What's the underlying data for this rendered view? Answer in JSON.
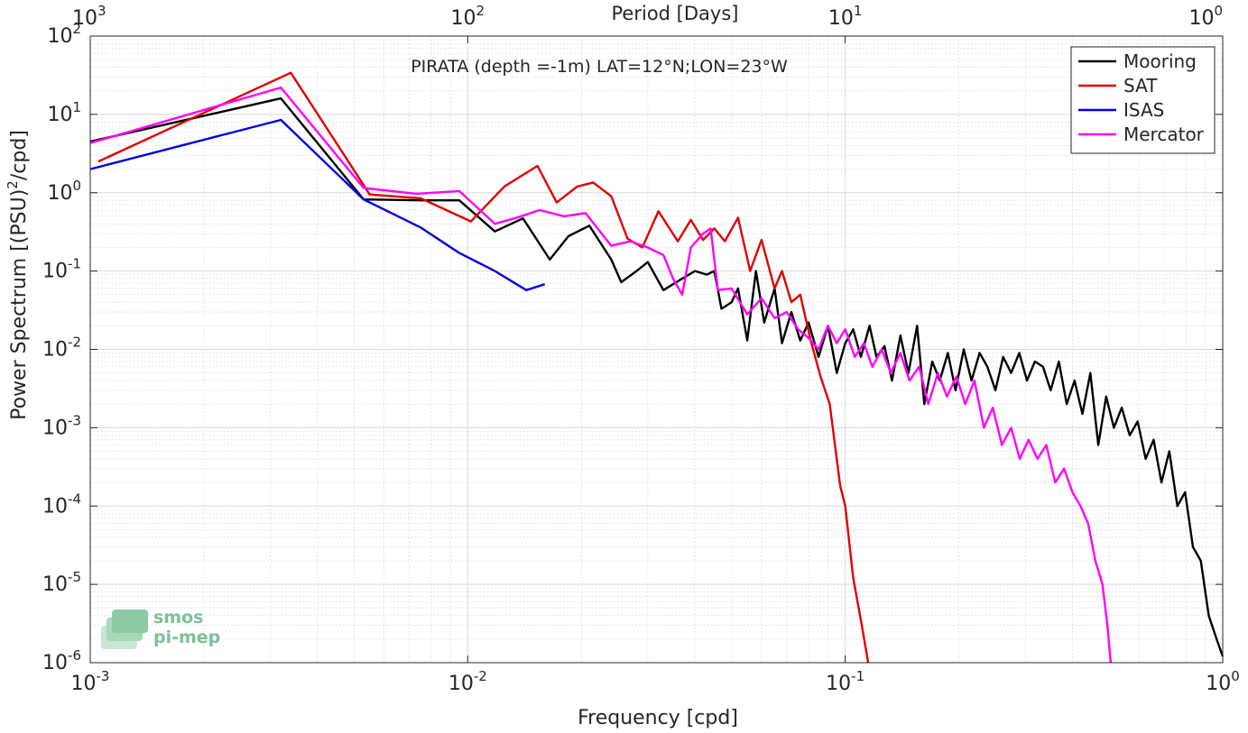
{
  "chart_data": {
    "type": "line",
    "title": "PIRATA (depth =-1m) LAT=12°N;LON=23°W",
    "xlabel": "Frequency [cpd]",
    "ylabel_main": "Power Spectrum [(PSU)",
    "ylabel_sup": "2",
    "ylabel_tail": "/cpd]",
    "top_axis_label": "Period [Days]",
    "x_scale": "log",
    "y_scale": "log",
    "xlim": [
      0.001,
      1
    ],
    "ylim": [
      1e-06,
      100
    ],
    "grid": true,
    "legend_position": "top-right",
    "x_ticks": [
      {
        "value": 0.001,
        "base": "10",
        "exp": "-3"
      },
      {
        "value": 0.01,
        "base": "10",
        "exp": "-2"
      },
      {
        "value": 0.1,
        "base": "10",
        "exp": "-1"
      },
      {
        "value": 1,
        "base": "10",
        "exp": "0"
      }
    ],
    "top_ticks": [
      {
        "value": 0.001,
        "base": "10",
        "exp": "3"
      },
      {
        "value": 0.01,
        "base": "10",
        "exp": "2"
      },
      {
        "value": 0.1,
        "base": "10",
        "exp": "1"
      },
      {
        "value": 1,
        "base": "10",
        "exp": "0"
      }
    ],
    "y_ticks": [
      {
        "value": 1e-06,
        "base": "10",
        "exp": "-6"
      },
      {
        "value": 1e-05,
        "base": "10",
        "exp": "-5"
      },
      {
        "value": 0.0001,
        "base": "10",
        "exp": "-4"
      },
      {
        "value": 0.001,
        "base": "10",
        "exp": "-3"
      },
      {
        "value": 0.01,
        "base": "10",
        "exp": "-2"
      },
      {
        "value": 0.1,
        "base": "10",
        "exp": "-1"
      },
      {
        "value": 1,
        "base": "10",
        "exp": "0"
      },
      {
        "value": 10,
        "base": "10",
        "exp": "1"
      },
      {
        "value": 100,
        "base": "10",
        "exp": "2"
      }
    ],
    "series": [
      {
        "name": "Mooring",
        "color": "#000000",
        "points": [
          [
            0.001,
            4.5
          ],
          [
            0.0032,
            16
          ],
          [
            0.0053,
            0.82
          ],
          [
            0.0075,
            0.8
          ],
          [
            0.0095,
            0.8
          ],
          [
            0.0118,
            0.32
          ],
          [
            0.014,
            0.47
          ],
          [
            0.0165,
            0.14
          ],
          [
            0.0185,
            0.28
          ],
          [
            0.021,
            0.38
          ],
          [
            0.024,
            0.14
          ],
          [
            0.0255,
            0.072
          ],
          [
            0.028,
            0.1
          ],
          [
            0.03,
            0.13
          ],
          [
            0.033,
            0.057
          ],
          [
            0.037,
            0.08
          ],
          [
            0.04,
            0.1
          ],
          [
            0.043,
            0.09
          ],
          [
            0.045,
            0.1
          ],
          [
            0.047,
            0.033
          ],
          [
            0.05,
            0.04
          ],
          [
            0.052,
            0.06
          ],
          [
            0.055,
            0.013
          ],
          [
            0.058,
            0.1
          ],
          [
            0.061,
            0.022
          ],
          [
            0.065,
            0.06
          ],
          [
            0.068,
            0.012
          ],
          [
            0.072,
            0.03
          ],
          [
            0.076,
            0.013
          ],
          [
            0.08,
            0.022
          ],
          [
            0.085,
            0.008
          ],
          [
            0.09,
            0.02
          ],
          [
            0.095,
            0.005
          ],
          [
            0.1,
            0.012
          ],
          [
            0.105,
            0.018
          ],
          [
            0.11,
            0.008
          ],
          [
            0.116,
            0.02
          ],
          [
            0.121,
            0.008
          ],
          [
            0.127,
            0.011
          ],
          [
            0.133,
            0.004
          ],
          [
            0.14,
            0.015
          ],
          [
            0.147,
            0.005
          ],
          [
            0.155,
            0.02
          ],
          [
            0.162,
            0.002
          ],
          [
            0.17,
            0.007
          ],
          [
            0.178,
            0.004
          ],
          [
            0.187,
            0.009
          ],
          [
            0.196,
            0.003
          ],
          [
            0.206,
            0.01
          ],
          [
            0.216,
            0.004
          ],
          [
            0.227,
            0.009
          ],
          [
            0.238,
            0.006
          ],
          [
            0.25,
            0.003
          ],
          [
            0.262,
            0.008
          ],
          [
            0.275,
            0.005
          ],
          [
            0.289,
            0.009
          ],
          [
            0.303,
            0.004
          ],
          [
            0.318,
            0.007
          ],
          [
            0.334,
            0.006
          ],
          [
            0.35,
            0.003
          ],
          [
            0.368,
            0.007
          ],
          [
            0.386,
            0.002
          ],
          [
            0.405,
            0.004
          ],
          [
            0.425,
            0.0015
          ],
          [
            0.446,
            0.005
          ],
          [
            0.468,
            0.0006
          ],
          [
            0.491,
            0.0025
          ],
          [
            0.515,
            0.001
          ],
          [
            0.54,
            0.0018
          ],
          [
            0.567,
            0.0008
          ],
          [
            0.595,
            0.0012
          ],
          [
            0.625,
            0.0004
          ],
          [
            0.656,
            0.0007
          ],
          [
            0.688,
            0.0002
          ],
          [
            0.722,
            0.0005
          ],
          [
            0.758,
            0.0001
          ],
          [
            0.795,
            0.00015
          ],
          [
            0.834,
            3e-05
          ],
          [
            0.875,
            2e-05
          ],
          [
            0.918,
            4e-06
          ],
          [
            0.963,
            2e-06
          ],
          [
            1.0,
            1.2e-06
          ]
        ]
      },
      {
        "name": "SAT",
        "color": "#e00000",
        "points": [
          [
            0.00105,
            2.5
          ],
          [
            0.0034,
            34
          ],
          [
            0.0055,
            0.95
          ],
          [
            0.0075,
            0.85
          ],
          [
            0.0102,
            0.43
          ],
          [
            0.0125,
            1.2
          ],
          [
            0.0153,
            2.2
          ],
          [
            0.0172,
            0.75
          ],
          [
            0.0195,
            1.2
          ],
          [
            0.0215,
            1.35
          ],
          [
            0.024,
            0.9
          ],
          [
            0.0265,
            0.26
          ],
          [
            0.029,
            0.2
          ],
          [
            0.032,
            0.58
          ],
          [
            0.036,
            0.24
          ],
          [
            0.039,
            0.45
          ],
          [
            0.042,
            0.25
          ],
          [
            0.045,
            0.35
          ],
          [
            0.048,
            0.24
          ],
          [
            0.052,
            0.48
          ],
          [
            0.056,
            0.1
          ],
          [
            0.06,
            0.25
          ],
          [
            0.065,
            0.06
          ],
          [
            0.068,
            0.1
          ],
          [
            0.072,
            0.04
          ],
          [
            0.076,
            0.05
          ],
          [
            0.081,
            0.013
          ],
          [
            0.086,
            0.0045
          ],
          [
            0.091,
            0.002
          ],
          [
            0.097,
            0.00018
          ],
          [
            0.1,
            0.0001
          ],
          [
            0.105,
            1.2e-05
          ],
          [
            0.11,
            3.5e-06
          ],
          [
            0.115,
            1e-06
          ]
        ]
      },
      {
        "name": "ISAS",
        "color": "#0000e0",
        "points": [
          [
            0.001,
            2.0
          ],
          [
            0.0032,
            8.5
          ],
          [
            0.0053,
            0.82
          ],
          [
            0.0075,
            0.36
          ],
          [
            0.0095,
            0.17
          ],
          [
            0.0118,
            0.1
          ],
          [
            0.0143,
            0.057
          ],
          [
            0.016,
            0.068
          ]
        ]
      },
      {
        "name": "Mercator",
        "color": "#ff00ff",
        "points": [
          [
            0.001,
            4.3
          ],
          [
            0.0032,
            22
          ],
          [
            0.0053,
            1.15
          ],
          [
            0.0073,
            0.97
          ],
          [
            0.0095,
            1.05
          ],
          [
            0.0118,
            0.4
          ],
          [
            0.0135,
            0.48
          ],
          [
            0.0155,
            0.6
          ],
          [
            0.018,
            0.5
          ],
          [
            0.0205,
            0.55
          ],
          [
            0.024,
            0.21
          ],
          [
            0.027,
            0.24
          ],
          [
            0.03,
            0.2
          ],
          [
            0.033,
            0.16
          ],
          [
            0.035,
            0.08
          ],
          [
            0.037,
            0.05
          ],
          [
            0.039,
            0.2
          ],
          [
            0.042,
            0.3
          ],
          [
            0.044,
            0.35
          ],
          [
            0.046,
            0.057
          ],
          [
            0.05,
            0.06
          ],
          [
            0.055,
            0.028
          ],
          [
            0.06,
            0.045
          ],
          [
            0.065,
            0.025
          ],
          [
            0.07,
            0.03
          ],
          [
            0.075,
            0.018
          ],
          [
            0.08,
            0.014
          ],
          [
            0.085,
            0.01
          ],
          [
            0.09,
            0.02
          ],
          [
            0.095,
            0.012
          ],
          [
            0.1,
            0.018
          ],
          [
            0.106,
            0.008
          ],
          [
            0.112,
            0.012
          ],
          [
            0.118,
            0.006
          ],
          [
            0.125,
            0.01
          ],
          [
            0.132,
            0.005
          ],
          [
            0.14,
            0.009
          ],
          [
            0.148,
            0.004
          ],
          [
            0.157,
            0.006
          ],
          [
            0.166,
            0.002
          ],
          [
            0.176,
            0.005
          ],
          [
            0.186,
            0.0025
          ],
          [
            0.197,
            0.0045
          ],
          [
            0.208,
            0.002
          ],
          [
            0.22,
            0.004
          ],
          [
            0.233,
            0.001
          ],
          [
            0.246,
            0.0018
          ],
          [
            0.26,
            0.0006
          ],
          [
            0.275,
            0.001
          ],
          [
            0.29,
            0.0004
          ],
          [
            0.306,
            0.0007
          ],
          [
            0.323,
            0.0004
          ],
          [
            0.341,
            0.0006
          ],
          [
            0.36,
            0.0002
          ],
          [
            0.38,
            0.0003
          ],
          [
            0.4,
            0.00015
          ],
          [
            0.42,
            0.0001
          ],
          [
            0.44,
            6e-05
          ],
          [
            0.46,
            2e-05
          ],
          [
            0.48,
            1e-05
          ],
          [
            0.495,
            3e-06
          ],
          [
            0.505,
            1e-06
          ]
        ]
      }
    ]
  },
  "logo": {
    "line1": "smos",
    "line2": "pi-mep",
    "color": "#7fbf9a"
  }
}
